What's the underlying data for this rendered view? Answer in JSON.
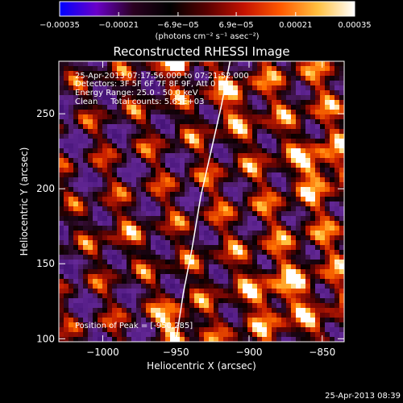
{
  "chart_data": {
    "type": "heatmap",
    "title": "Reconstructed RHESSI Image",
    "xlabel": "Heliocentric X (arcsec)",
    "ylabel": "Heliocentric Y (arcsec)",
    "xlim": [
      -1030,
      -835
    ],
    "ylim": [
      98,
      285
    ],
    "x_ticks": [
      -1000,
      -950,
      -900,
      -850
    ],
    "x_tick_labels": [
      "−1000",
      "−950",
      "−900",
      "−850"
    ],
    "y_ticks": [
      100,
      150,
      200,
      250
    ],
    "y_tick_labels": [
      "100",
      "150",
      "200",
      "250"
    ],
    "colorbar": {
      "range": [
        -0.00035,
        0.00035
      ],
      "ticks": [
        -0.00035,
        -0.00021,
        -6.9e-05,
        6.9e-05,
        0.00021,
        0.00035
      ],
      "tick_labels": [
        "−0.00035",
        "−0.00021",
        "−6.9e−05",
        "6.9e−05",
        "0.00021",
        "0.00035"
      ],
      "unit_label": "(photons cm⁻² s⁻¹ asec⁻²)",
      "colors": [
        "#0000ff",
        "#6a00c8",
        "#2a0020",
        "#000000",
        "#5a0000",
        "#c41200",
        "#ff5a00",
        "#ffc040",
        "#ffffff"
      ]
    },
    "annotations": {
      "time_range": "25-Apr-2013 07:17:56.000 to 07:21:52.000",
      "detectors": "Detectors: 3F 5F 6F 7F 8F 9F, Att 0",
      "energy": "Energy Range: 25.0 - 50.0 keV",
      "clean": "Clean     Total counts: 5.65E+03",
      "peak": "Position of Peak = [-950,285]"
    },
    "peak_position": [
      -950,
      285
    ],
    "limb_curve": [
      [
        -950,
        98
      ],
      [
        -945,
        130
      ],
      [
        -939,
        160
      ],
      [
        -933,
        195
      ],
      [
        -926,
        225
      ],
      [
        -919,
        255
      ],
      [
        -913,
        285
      ]
    ]
  },
  "footer": {
    "timestamp": "25-Apr-2013 08:39"
  }
}
